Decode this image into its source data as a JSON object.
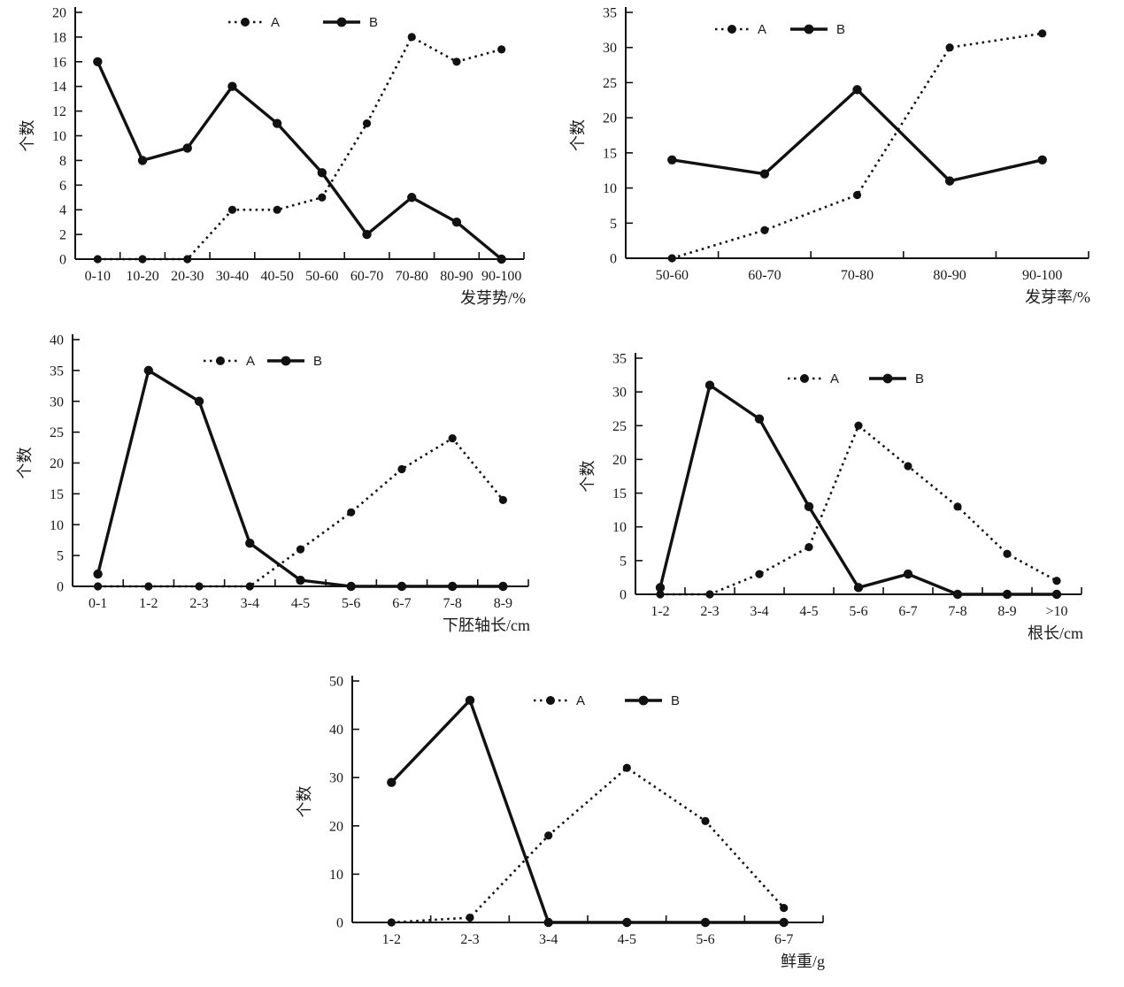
{
  "figure": {
    "background": "#ffffff",
    "line_color": "#111111",
    "text_color": "#1a1a1a"
  },
  "chart_data": [
    {
      "type": "line",
      "title": "",
      "xlabel": "发芽势/%",
      "ylabel": "个数",
      "categories": [
        "0-10",
        "10-20",
        "20-30",
        "30-40",
        "40-50",
        "50-60",
        "60-70",
        "70-80",
        "80-90",
        "90-100"
      ],
      "series": [
        {
          "name": "A",
          "style": "dotted",
          "values": [
            0,
            0,
            0,
            4,
            4,
            5,
            11,
            18,
            16,
            17
          ]
        },
        {
          "name": "B",
          "style": "solid",
          "values": [
            16,
            8,
            9,
            14,
            11,
            7,
            2,
            5,
            3,
            0
          ]
        }
      ],
      "ylim": [
        0,
        20
      ],
      "ytick_step": 2,
      "legend_position": "top-center",
      "grid": false
    },
    {
      "type": "line",
      "title": "",
      "xlabel": "发芽率/%",
      "ylabel": "个数",
      "categories": [
        "50-60",
        "60-70",
        "70-80",
        "80-90",
        "90-100"
      ],
      "series": [
        {
          "name": "A",
          "style": "dotted",
          "values": [
            0,
            4,
            9,
            30,
            32
          ]
        },
        {
          "name": "B",
          "style": "solid",
          "values": [
            14,
            12,
            24,
            11,
            14
          ]
        }
      ],
      "ylim": [
        0,
        35
      ],
      "ytick_step": 5,
      "legend_position": "top-center",
      "grid": false
    },
    {
      "type": "line",
      "title": "",
      "xlabel": "下胚轴长/cm",
      "ylabel": "个数",
      "categories": [
        "0-1",
        "1-2",
        "2-3",
        "3-4",
        "4-5",
        "5-6",
        "6-7",
        "7-8",
        "8-9"
      ],
      "series": [
        {
          "name": "A",
          "style": "dotted",
          "values": [
            0,
            0,
            0,
            0,
            6,
            12,
            19,
            24,
            14
          ]
        },
        {
          "name": "B",
          "style": "solid",
          "values": [
            2,
            35,
            30,
            7,
            1,
            0,
            0,
            0,
            0
          ]
        }
      ],
      "ylim": [
        0,
        40
      ],
      "ytick_step": 5,
      "legend_position": "top-center",
      "grid": false
    },
    {
      "type": "line",
      "title": "",
      "xlabel": "根长/cm",
      "ylabel": "个数",
      "categories": [
        "1-2",
        "2-3",
        "3-4",
        "4-5",
        "5-6",
        "6-7",
        "7-8",
        "8-9",
        ">10"
      ],
      "series": [
        {
          "name": "A",
          "style": "dotted",
          "values": [
            0,
            0,
            3,
            7,
            25,
            19,
            13,
            6,
            2
          ]
        },
        {
          "name": "B",
          "style": "solid",
          "values": [
            1,
            31,
            26,
            13,
            1,
            3,
            0,
            0,
            0
          ]
        }
      ],
      "ylim": [
        0,
        35
      ],
      "ytick_step": 5,
      "legend_position": "top-center",
      "grid": false
    },
    {
      "type": "line",
      "title": "",
      "xlabel": "鲜重/g",
      "ylabel": "个数",
      "categories": [
        "1-2",
        "2-3",
        "3-4",
        "4-5",
        "5-6",
        "6-7"
      ],
      "series": [
        {
          "name": "A",
          "style": "dotted",
          "values": [
            0,
            1,
            18,
            32,
            21,
            3
          ]
        },
        {
          "name": "B",
          "style": "solid",
          "values": [
            29,
            46,
            0,
            0,
            0,
            0
          ]
        }
      ],
      "ylim": [
        0,
        50
      ],
      "ytick_step": 10,
      "legend_position": "top-center",
      "grid": false
    }
  ]
}
